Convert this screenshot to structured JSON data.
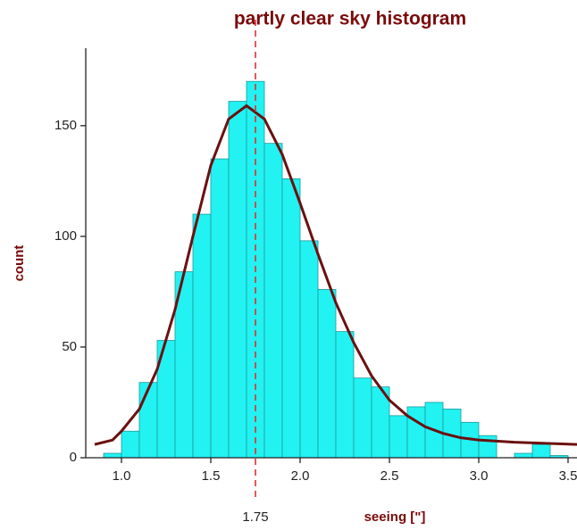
{
  "chart_data": {
    "type": "histogram",
    "title": "partly clear sky histogram",
    "x_label": "seeing [\"]",
    "y_label": "count",
    "bins": [
      0.9,
      1.0,
      1.1,
      1.2,
      1.3,
      1.4,
      1.5,
      1.6,
      1.7,
      1.8,
      1.9,
      2.0,
      2.1,
      2.2,
      2.3,
      2.4,
      2.5,
      2.6,
      2.7,
      2.8,
      2.9,
      3.0,
      3.1,
      3.2,
      3.3,
      3.4,
      3.5
    ],
    "counts": [
      2,
      12,
      34,
      53,
      84,
      110,
      135,
      161,
      170,
      142,
      126,
      98,
      76,
      57,
      36,
      32,
      19,
      23,
      25,
      22,
      16,
      10,
      0,
      2,
      6,
      1
    ],
    "color": "#22f2f2",
    "edge_color": "#1a9a9a",
    "fit": {
      "color": "#6b1010",
      "x": [
        0.85,
        0.95,
        1.0,
        1.1,
        1.2,
        1.3,
        1.4,
        1.5,
        1.6,
        1.7,
        1.8,
        1.9,
        2.0,
        2.1,
        2.2,
        2.3,
        2.4,
        2.5,
        2.6,
        2.7,
        2.8,
        2.9,
        3.0,
        3.2,
        3.55
      ],
      "values": [
        6,
        8,
        12,
        22,
        40,
        67,
        100,
        132,
        153,
        159,
        153,
        137,
        115,
        92,
        70,
        52,
        37,
        26,
        19,
        14,
        11,
        9,
        8,
        7,
        6
      ]
    },
    "reference_line": 1.75,
    "reference_color": "#e03030",
    "xlim": [
      0.8,
      3.55
    ],
    "ylim": [
      0,
      185
    ],
    "xticks": [
      {
        "value": 1,
        "label": "1.0"
      },
      1.5,
      {
        "value": 2,
        "label": "2.0"
      },
      2.5,
      {
        "value": 3,
        "label": "3.0"
      },
      3.5
    ],
    "yticks": [
      0,
      50,
      100,
      150
    ],
    "grid": false
  }
}
